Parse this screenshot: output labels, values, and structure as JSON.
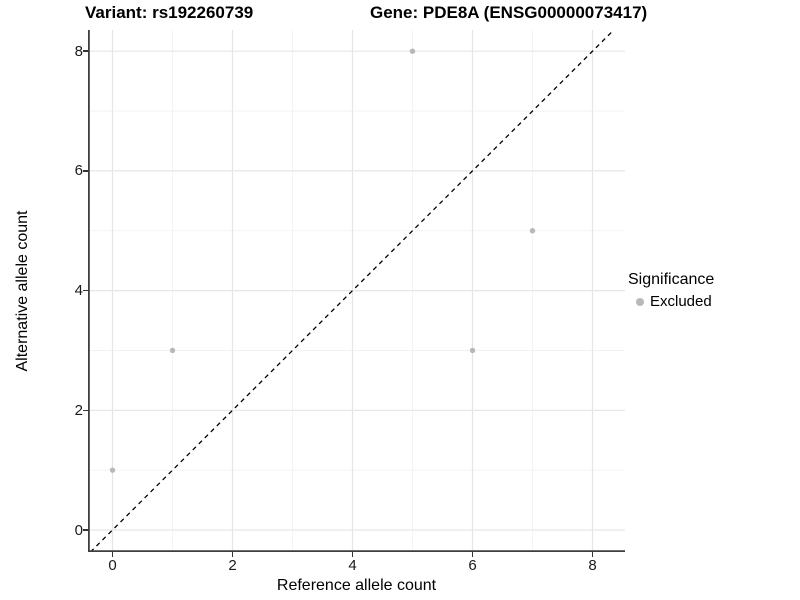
{
  "titles": {
    "variant": "Variant: rs192260739",
    "gene": "Gene: PDE8A (ENSG00000073417)"
  },
  "chart_data": {
    "type": "scatter",
    "xlabel": "Reference allele count",
    "ylabel": "Alternative allele count",
    "xlim": [
      -0.42,
      8.54
    ],
    "ylim": [
      -0.37,
      8.36
    ],
    "xticks": [
      0,
      2,
      4,
      6,
      8
    ],
    "yticks": [
      0,
      2,
      4,
      6,
      8
    ],
    "minor_gridlines_x": [
      1,
      3,
      5,
      7
    ],
    "minor_gridlines_y": [
      1,
      3,
      5,
      7
    ],
    "grid": true,
    "legend_position": "right",
    "series": [
      {
        "name": "Excluded",
        "points": [
          {
            "x": 0,
            "y": 1
          },
          {
            "x": 1,
            "y": 3
          },
          {
            "x": 5,
            "y": 8
          },
          {
            "x": 6,
            "y": 3
          },
          {
            "x": 7,
            "y": 5
          }
        ]
      }
    ],
    "reference_line": {
      "equation": "y = x",
      "style": "dashed",
      "color": "#000000"
    },
    "point_color": "#b8b8b8"
  },
  "legend": {
    "title": "Significance",
    "items": [
      {
        "label": "Excluded",
        "color": "#b8b8b8"
      }
    ]
  },
  "colors": {
    "axis_line": "#3e3e3e",
    "grid_major": "#e6e6e6",
    "grid_minor": "#f1f1f1",
    "tick_label": "#1a1a1a"
  }
}
